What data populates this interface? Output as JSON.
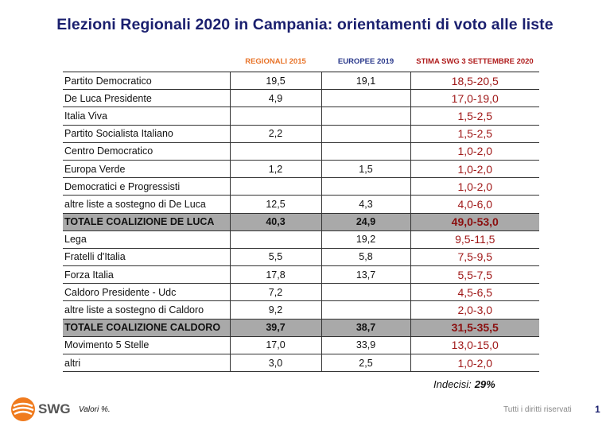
{
  "chart_data": {
    "type": "table",
    "title": "Elezioni Regionali 2020 in Campania: orientamenti di voto alle liste",
    "columns": [
      "REGIONALI 2015",
      "EUROPEE 2019",
      "STIMA SWG 3 SETTEMBRE 2020"
    ],
    "rows": [
      {
        "label": "Partito Democratico",
        "values": [
          "19,5",
          "19,1",
          "18,5-20,5"
        ],
        "total": false
      },
      {
        "label": "De Luca Presidente",
        "values": [
          "4,9",
          "",
          "17,0-19,0"
        ],
        "total": false
      },
      {
        "label": "Italia Viva",
        "values": [
          "",
          "",
          "1,5-2,5"
        ],
        "total": false
      },
      {
        "label": "Partito Socialista Italiano",
        "values": [
          "2,2",
          "",
          "1,5-2,5"
        ],
        "total": false
      },
      {
        "label": "Centro Democratico",
        "values": [
          "",
          "",
          "1,0-2,0"
        ],
        "total": false
      },
      {
        "label": "Europa Verde",
        "values": [
          "1,2",
          "1,5",
          "1,0-2,0"
        ],
        "total": false
      },
      {
        "label": "Democratici e Progressisti",
        "values": [
          "",
          "",
          "1,0-2,0"
        ],
        "total": false
      },
      {
        "label": "altre liste a sostegno di De Luca",
        "values": [
          "12,5",
          "4,3",
          "4,0-6,0"
        ],
        "total": false
      },
      {
        "label": "TOTALE COALIZIONE DE LUCA",
        "values": [
          "40,3",
          "24,9",
          "49,0-53,0"
        ],
        "total": true
      },
      {
        "label": "Lega",
        "values": [
          "",
          "19,2",
          "9,5-11,5"
        ],
        "total": false
      },
      {
        "label": "Fratelli d'Italia",
        "values": [
          "5,5",
          "5,8",
          "7,5-9,5"
        ],
        "total": false
      },
      {
        "label": "Forza Italia",
        "values": [
          "17,8",
          "13,7",
          "5,5-7,5"
        ],
        "total": false
      },
      {
        "label": "Caldoro Presidente - Udc",
        "values": [
          "7,2",
          "",
          "4,5-6,5"
        ],
        "total": false
      },
      {
        "label": "altre liste a sostegno di Caldoro",
        "values": [
          "9,2",
          "",
          "2,0-3,0"
        ],
        "total": false
      },
      {
        "label": "TOTALE COALIZIONE CALDORO",
        "values": [
          "39,7",
          "38,7",
          "31,5-35,5"
        ],
        "total": true
      },
      {
        "label": "Movimento 5 Stelle",
        "values": [
          "17,0",
          "33,9",
          "13,0-15,0"
        ],
        "total": false
      },
      {
        "label": "altri",
        "values": [
          "3,0",
          "2,5",
          "1,0-2,0"
        ],
        "total": false
      }
    ],
    "indecisi_label": "Indecisi:",
    "indecisi_value": "29%"
  },
  "footer": {
    "brand": "SWG",
    "note": "Valori %.",
    "rights": "Tutti i diritti riservati",
    "page": "1"
  },
  "colors": {
    "title": "#1a1f6e",
    "regionali_header": "#e8742a",
    "europee_header": "#2b3a8c",
    "swg_header": "#b01e1e",
    "swg_values": "#a01919",
    "total_row_bg": "#a9a9a9",
    "logo": "#f07b1e"
  }
}
